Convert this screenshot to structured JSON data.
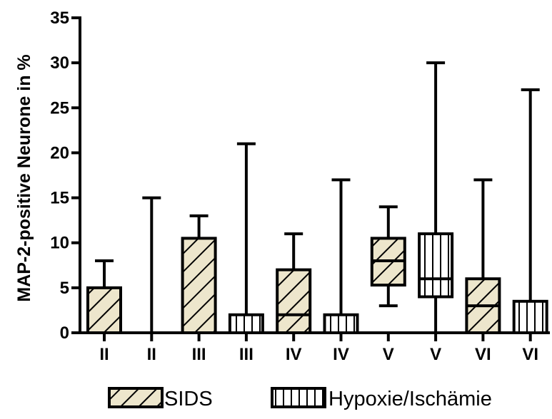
{
  "chart_data": {
    "type": "boxplot",
    "ylabel": "MAP-2-positive Neurone in %",
    "ylim": [
      0,
      35
    ],
    "yticks": [
      0,
      5,
      10,
      15,
      20,
      25,
      30,
      35
    ],
    "categories": [
      "II",
      "II",
      "III",
      "III",
      "IV",
      "IV",
      "V",
      "V",
      "VI",
      "VI"
    ],
    "groups": [
      "SIDS",
      "Hypoxie/Ischämie",
      "SIDS",
      "Hypoxie/Ischämie",
      "SIDS",
      "Hypoxie/Ischämie",
      "SIDS",
      "Hypoxie/Ischämie",
      "SIDS",
      "Hypoxie/Ischämie"
    ],
    "boxes": [
      {
        "min": 0,
        "q1": 0,
        "median": 0,
        "q3": 5,
        "max": 8
      },
      {
        "min": 0,
        "q1": 0,
        "median": 0,
        "q3": 0,
        "max": 15
      },
      {
        "min": 0,
        "q1": 0,
        "median": 0,
        "q3": 10.5,
        "max": 13
      },
      {
        "min": 0,
        "q1": 0,
        "median": 0,
        "q3": 2,
        "max": 21
      },
      {
        "min": 0,
        "q1": 0,
        "median": 2,
        "q3": 7,
        "max": 11
      },
      {
        "min": 0,
        "q1": 0,
        "median": 0,
        "q3": 2,
        "max": 17
      },
      {
        "min": 3,
        "q1": 5.3,
        "median": 8,
        "q3": 10.5,
        "max": 14
      },
      {
        "min": 0,
        "q1": 4,
        "median": 6,
        "q3": 11,
        "max": 30
      },
      {
        "min": 0,
        "q1": 0,
        "median": 3,
        "q3": 6,
        "max": 17
      },
      {
        "min": 0,
        "q1": 0,
        "median": 0,
        "q3": 3.5,
        "max": 27
      }
    ],
    "legend": [
      {
        "name": "SIDS",
        "pattern": "diagonal-hatch"
      },
      {
        "name": "Hypoxie/Ischämie",
        "pattern": "vertical-hatch"
      }
    ],
    "legend_position": "bottom",
    "colors": {
      "sids_fill": "#ede6cc",
      "hypoxie_fill": "#ffffff",
      "stroke": "#000000"
    }
  }
}
